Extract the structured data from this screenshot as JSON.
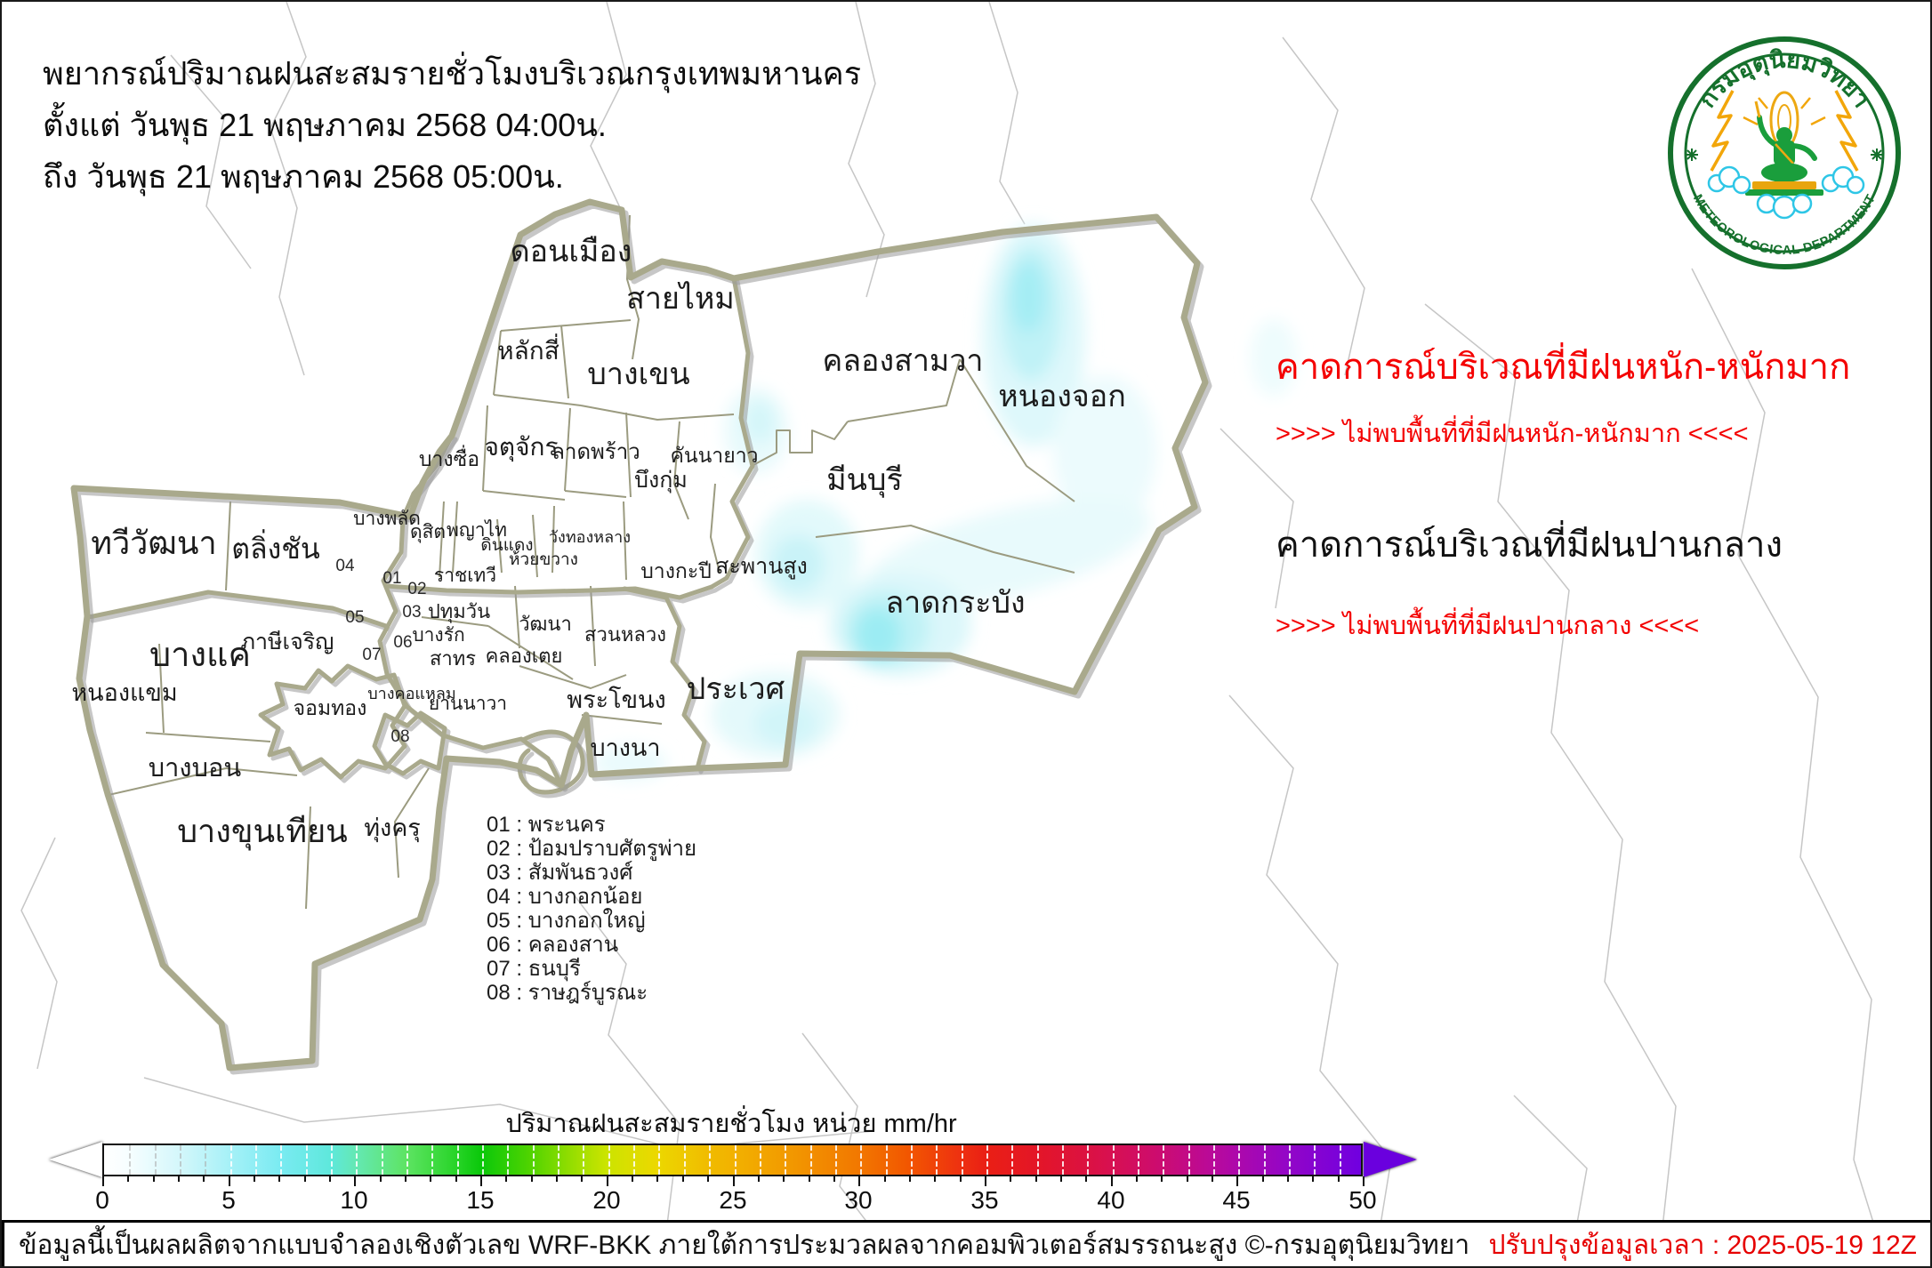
{
  "header": {
    "line1": "พยากรณ์ปริมาณฝนสะสมรายชั่วโมงบริเวณกรุงเทพมหานคร",
    "line2": "ตั้งแต่ วันพุธ 21 พฤษภาคม 2568 04:00น.",
    "line3": "ถึง วันพุธ 21 พฤษภาคม 2568 05:00น."
  },
  "logo": {
    "thai_name": "กรมอุตุนิยมวิทยา",
    "english_name": "METEOROLOGICAL DEPARTMENT",
    "ring_color": "#15702c",
    "accent_orange": "#f0a60a",
    "accent_cyan": "#2ec6e6"
  },
  "forecast_panel": {
    "heavy_heading": "คาดการณ์บริเวณที่มีฝนหนัก-หนักมาก",
    "heavy_result": ">>>> ไม่พบพื้นที่ที่มีฝนหนัก-หนักมาก <<<<",
    "moderate_heading": "คาดการณ์บริเวณที่มีฝนปานกลาง",
    "moderate_result": ">>>> ไม่พบพื้นที่ที่มีฝนปานกลาง <<<<",
    "heading_red": "#f40000"
  },
  "map": {
    "districts": [
      {
        "label": "ดอนเมือง"
      },
      {
        "label": "สายไหม"
      },
      {
        "label": "หลักสี่"
      },
      {
        "label": "บางเขน"
      },
      {
        "label": "คลองสามวา"
      },
      {
        "label": "หนองจอก"
      },
      {
        "label": "จตุจักร"
      },
      {
        "label": "ลาดพร้าว"
      },
      {
        "label": "บางซื่อ"
      },
      {
        "label": "คันนายาว"
      },
      {
        "label": "บึงกุ่ม"
      },
      {
        "label": "มีนบุรี"
      },
      {
        "label": "บางพลัด"
      },
      {
        "label": "ดุสิต"
      },
      {
        "label": "พญาไท"
      },
      {
        "label": "ดินแดง"
      },
      {
        "label": "ห้วยขวาง"
      },
      {
        "label": "วังทองหลาง"
      },
      {
        "label": "ราชเทวี"
      },
      {
        "label": "สะพานสูง"
      },
      {
        "label": "บางกะปี"
      },
      {
        "label": "ลาดกระบัง"
      },
      {
        "label": "ทวีวัฒนา"
      },
      {
        "label": "ตลิ่งชัน"
      },
      {
        "label": "ปทุมวัน"
      },
      {
        "label": "วัฒนา"
      },
      {
        "label": "สวนหลวง"
      },
      {
        "label": "บางรัก"
      },
      {
        "label": "บางแค"
      },
      {
        "label": "ภาษีเจริญ"
      },
      {
        "label": "สาทร"
      },
      {
        "label": "คลองเตย"
      },
      {
        "label": "หนองแขม"
      },
      {
        "label": "ประเวศ"
      },
      {
        "label": "บางคอแหลม"
      },
      {
        "label": "จอมทอง"
      },
      {
        "label": "พระโขนง"
      },
      {
        "label": "ยานนาวา"
      },
      {
        "label": "บางนา"
      },
      {
        "label": "บางบอน"
      },
      {
        "label": "บางขุนเทียน"
      },
      {
        "label": "ทุ่งครุ"
      }
    ],
    "area_numbers": [
      "01",
      "02",
      "03",
      "04",
      "05",
      "06",
      "07",
      "08"
    ],
    "legend_items": [
      "01 : พระนคร",
      "02 : ป้อมปราบศัตรูพ่าย",
      "03 : สัมพันธวงศ์",
      "04 : บางกอกน้อย",
      "05 : บางกอกใหญ่",
      "06 : คลองสาน",
      "07 : ธนบุรี",
      "08 : ราษฎร์บูรณะ"
    ],
    "boundary_color": "#a9a98c",
    "rain_shade_color": "#a8ebf3"
  },
  "colorbar": {
    "title": "ปริมาณฝนสะสมรายชั่วโมง หน่วย mm/hr",
    "unit": "mm/hr",
    "min": 0,
    "max": 50,
    "ticks": [
      "0",
      "5",
      "10",
      "15",
      "20",
      "25",
      "30",
      "35",
      "40",
      "45",
      "50"
    ]
  },
  "footer": {
    "left": "ข้อมูลนี้เป็นผลผลิตจากแบบจำลองเชิงตัวเลข WRF-BKK ภายใต้การประมวลผลจากคอมพิวเตอร์สมรรถนะสูง ©-กรมอุตุนิยมวิทยา",
    "right": "ปรับปรุงข้อมูลเวลา : 2025-05-19 12Z",
    "right_color": "#e60000"
  }
}
